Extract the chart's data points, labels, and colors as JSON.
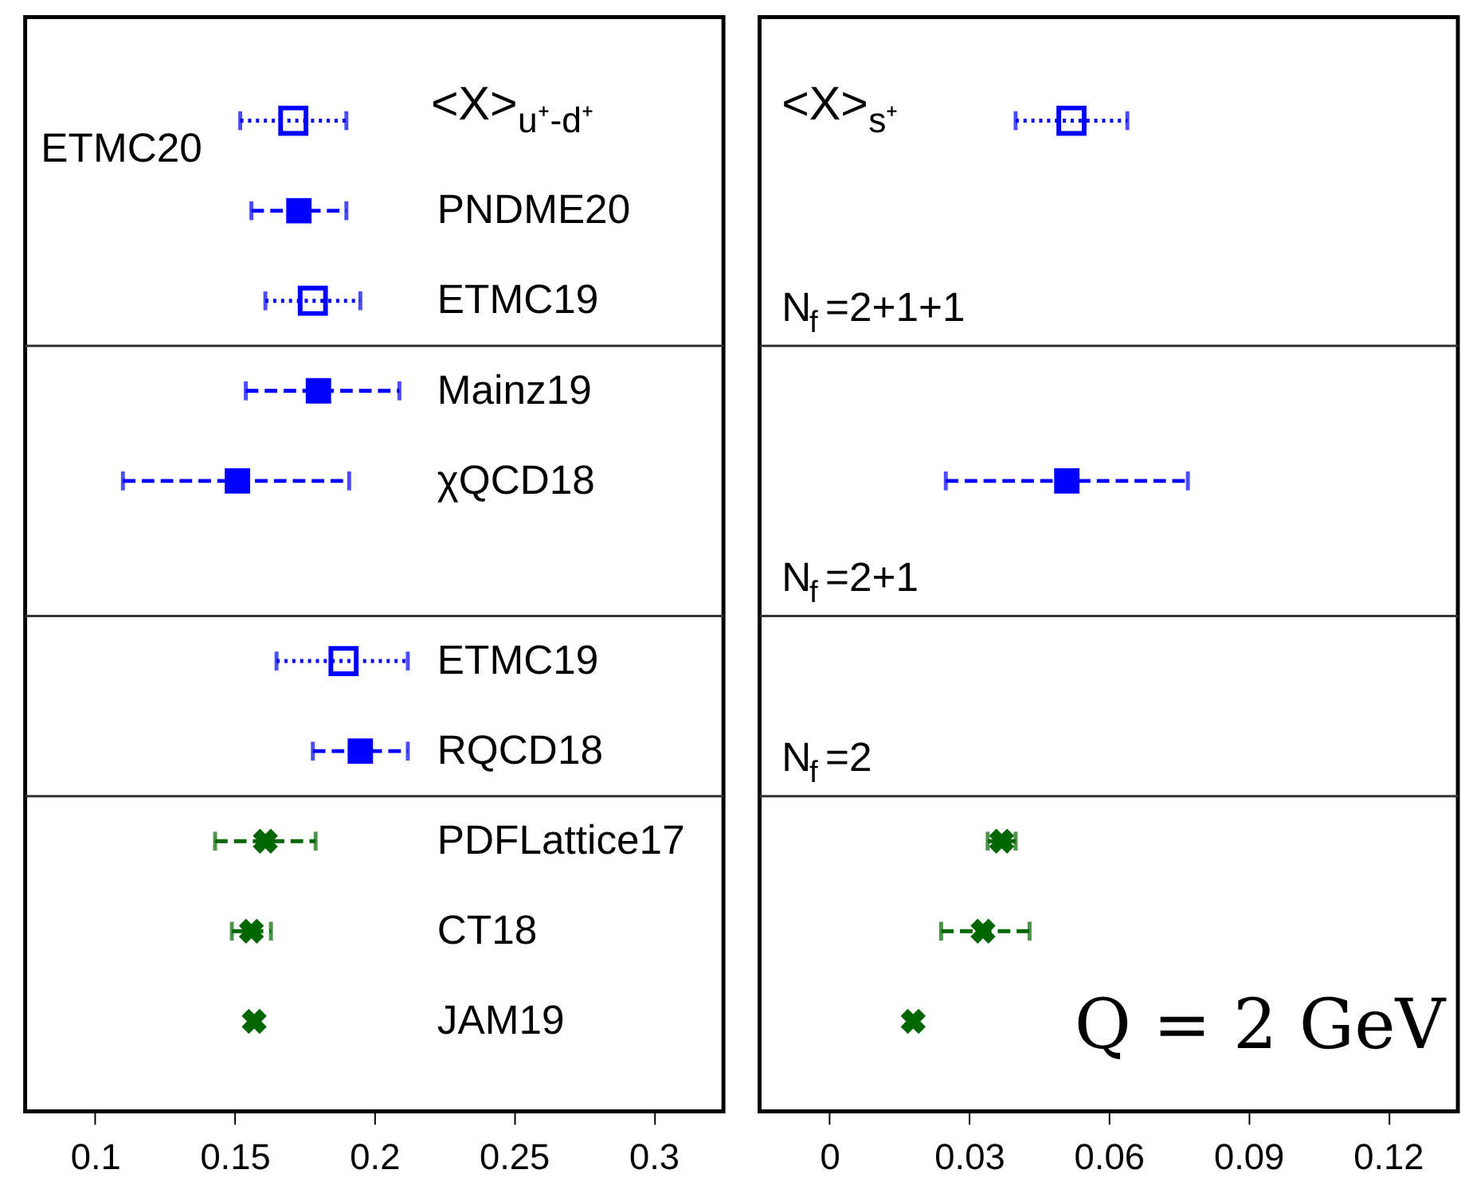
{
  "chart_data": [
    {
      "type": "scatter",
      "orientation": "horizontal",
      "title": "<X>$_{u⁺-d⁺}$",
      "categories": [
        "ETMC20",
        "PNDME20",
        "ETMC19",
        "Mainz19",
        "χQCD18",
        null,
        "ETMC19",
        "RQCD18",
        "PDFLattice17",
        "CT18",
        "JAM19"
      ],
      "series": [
        {
          "color": "#0000ff",
          "marker": "square",
          "line_style": "dotted",
          "values": [
            0.171,
            null,
            0.178,
            null,
            null,
            null,
            0.189,
            null,
            null,
            null,
            null
          ],
          "errors": [
            [
              0.152,
              0.19
            ],
            null,
            [
              0.161,
              0.195
            ],
            null,
            null,
            null,
            [
              0.165,
              0.212
            ],
            null,
            null,
            null,
            null
          ]
        },
        {
          "color": "#0000ff",
          "marker": "square",
          "line_style": "dashed",
          "values": [
            null,
            0.173,
            null,
            0.18,
            0.151,
            null,
            null,
            0.195,
            null,
            null,
            null
          ],
          "errors": [
            null,
            [
              0.156,
              0.19
            ],
            null,
            [
              0.154,
              0.209
            ],
            [
              0.11,
              0.191
            ],
            null,
            null,
            [
              0.178,
              0.212
            ],
            null,
            null,
            null
          ]
        },
        {
          "color": "#006600",
          "marker": "cross",
          "line_style": "dashed",
          "values": [
            null,
            null,
            null,
            null,
            null,
            null,
            null,
            null,
            0.161,
            0.156,
            0.157
          ],
          "errors": [
            null,
            null,
            null,
            null,
            null,
            null,
            null,
            null,
            [
              0.143,
              0.179
            ],
            [
              0.149,
              0.163
            ],
            null
          ]
        }
      ],
      "xlim": [
        0.075,
        0.325
      ],
      "xticks": [
        0.1,
        0.15,
        0.2,
        0.25,
        0.3
      ]
    },
    {
      "type": "scatter",
      "orientation": "horizontal",
      "title": "<X>$_{s⁺}$",
      "categories": [
        null,
        null,
        null,
        null,
        null,
        null,
        null,
        null,
        null,
        null,
        null
      ],
      "tick_labels": "x",
      "series": [
        {
          "color": "#0000ff",
          "marker": "square",
          "line_style": "dotted",
          "values": [
            0.052,
            null,
            null,
            null,
            null,
            null,
            null,
            null,
            null,
            null,
            null
          ],
          "errors": [
            [
              0.04,
              0.064
            ],
            null,
            null,
            null,
            null,
            null,
            null,
            null,
            null,
            null,
            null
          ]
        },
        {
          "color": "#0000ff",
          "marker": "square",
          "line_style": "dashed",
          "values": [
            null,
            null,
            null,
            null,
            0.051,
            null,
            null,
            null,
            null,
            null,
            null
          ],
          "errors": [
            null,
            null,
            null,
            null,
            [
              0.025,
              0.077
            ],
            null,
            null,
            null,
            null,
            null,
            null
          ]
        },
        {
          "color": "#006600",
          "marker": "cross",
          "line_style": "dashed",
          "values": [
            null,
            null,
            null,
            null,
            null,
            null,
            null,
            null,
            0.037,
            0.033,
            0.018
          ],
          "errors": [
            null,
            null,
            null,
            null,
            null,
            null,
            null,
            null,
            [
              0.034,
              0.04
            ],
            [
              0.024,
              0.043
            ],
            null
          ]
        }
      ],
      "xlim": [
        -0.015,
        0.135
      ],
      "xticks": [
        0,
        0.03,
        0.06,
        0.09,
        0.12
      ],
      "annotations": [
        "N$_{f}$=2+1+1",
        "N$_{f}$=2+1",
        "N$_{f}$=2",
        "Q = 2 GeV"
      ]
    }
  ]
}
